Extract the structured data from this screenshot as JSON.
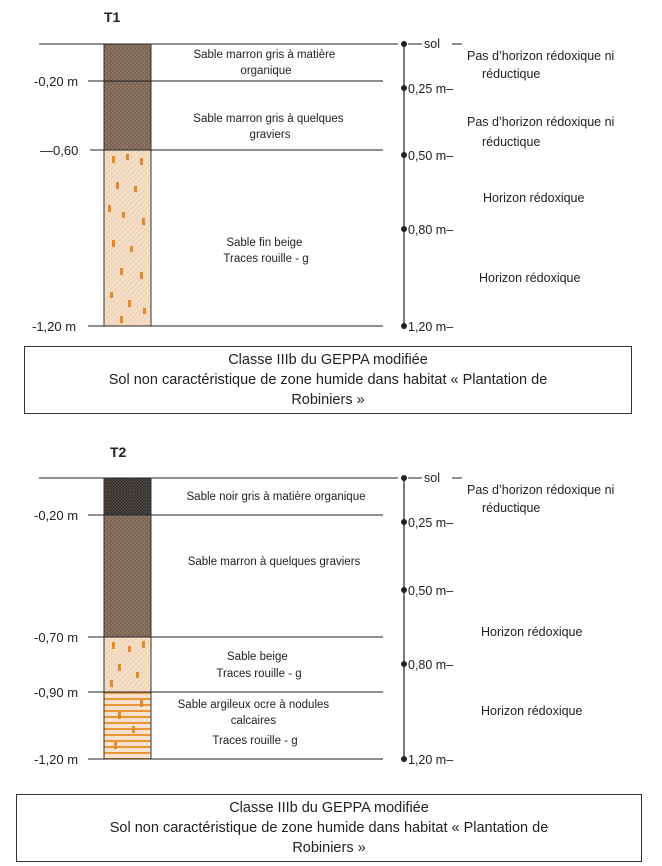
{
  "profiles": [
    {
      "id": "T1",
      "title": "T1",
      "left_depths": [
        "-0,20 m",
        "—0,60",
        "-1,20 m"
      ],
      "layers": [
        {
          "text": [
            "Sable marron gris à matière",
            "organique"
          ]
        },
        {
          "text": [
            "Sable marron gris à quelques",
            "graviers"
          ]
        },
        {
          "text": [
            "Sable fin beige",
            "Traces rouille - g"
          ]
        }
      ],
      "scale_marks": [
        "sol",
        "0,25 m–",
        "0,50 m–",
        "0,80 m–",
        "1,20 m–"
      ],
      "horizons": [
        [
          "Pas d’horizon rédoxique ni",
          "réductique"
        ],
        [
          "Pas d’horizon rédoxique ni",
          "réductique"
        ],
        [
          "Horizon rédoxique"
        ],
        [
          "Horizon rédoxique"
        ]
      ],
      "caption": [
        "Classe IIIb du GEPPA modifiée",
        "Sol non caractéristique de zone humide dans habitat «  Plantation de",
        "Robiniers »"
      ]
    },
    {
      "id": "T2",
      "title": "T2",
      "left_depths": [
        "-0,20 m",
        "-0,70 m",
        "-0,90 m",
        "-1,20 m"
      ],
      "layers": [
        {
          "text": [
            "Sable noir gris à matière organique"
          ]
        },
        {
          "text": [
            "Sable marron à quelques graviers"
          ]
        },
        {
          "text": [
            "Sable beige",
            "Traces rouille - g"
          ]
        },
        {
          "text": [
            "Sable argileux ocre à nodules",
            "calcaires",
            "Traces rouille - g"
          ]
        }
      ],
      "scale_marks": [
        "sol",
        "0,25 m–",
        "0,50 m–",
        "0,80 m–",
        "1,20 m–"
      ],
      "horizons": [
        [
          "Pas d’horizon rédoxique ni",
          "réductique"
        ],
        [
          "Horizon rédoxique"
        ],
        [
          "Horizon rédoxique"
        ]
      ],
      "caption": [
        "Classe IIIb du GEPPA modifiée",
        "Sol non caractéristique de zone humide dans habitat «  Plantation de",
        "Robiniers »"
      ]
    }
  ],
  "colors": {
    "organic_dark": "#4a4440",
    "brown_sand": "#8a6e5e",
    "beige_sand": "#f3dcc3",
    "rust_mark": "#e08a2a",
    "ochre_stripe": "#e9933a",
    "line": "#222222"
  }
}
